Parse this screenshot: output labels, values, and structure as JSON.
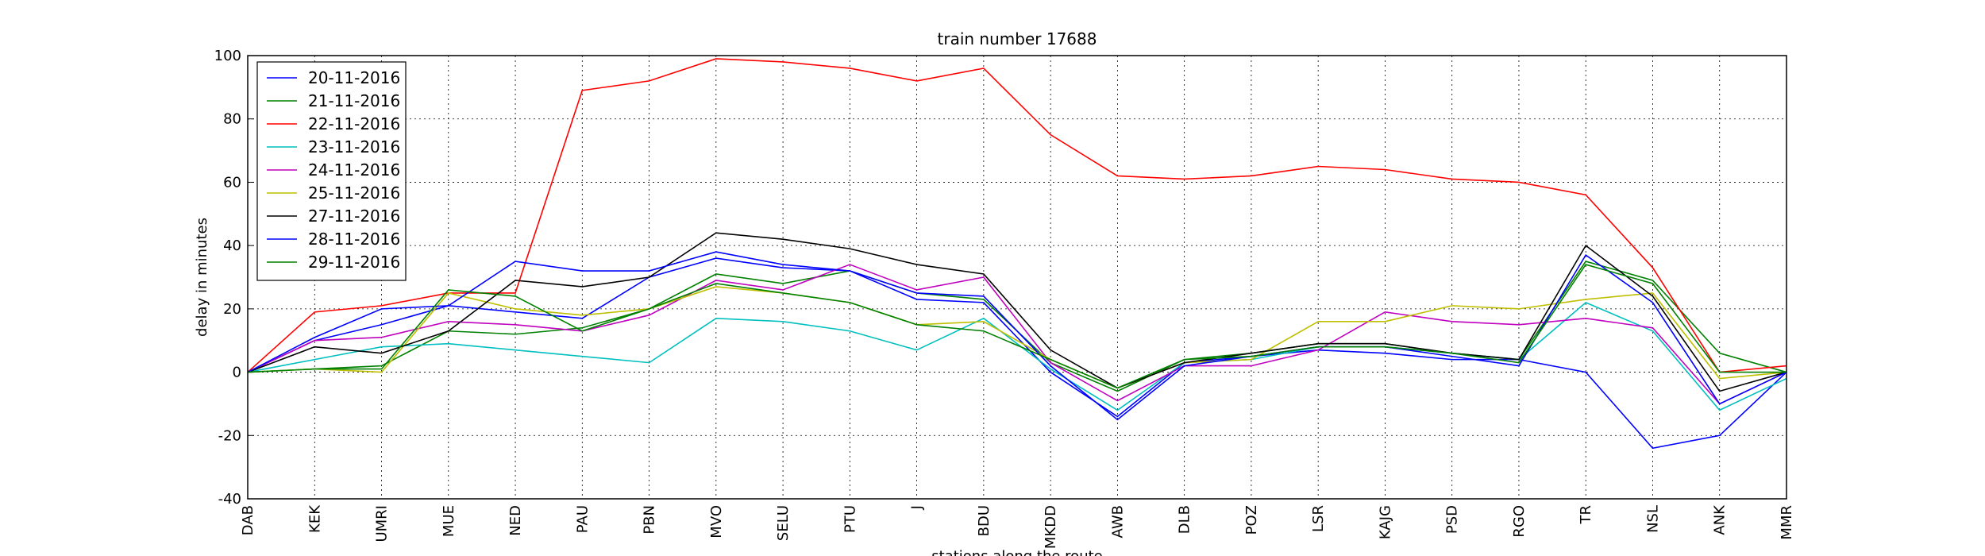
{
  "chart_data": {
    "type": "line",
    "title": "train number 17688",
    "x_label": "stations along the route",
    "y_label": "delay in minutes",
    "categories": [
      "DAB",
      "KEK",
      "UMRI",
      "MUE",
      "NED",
      "PAU",
      "PBN",
      "MVO",
      "SELU",
      "PTU",
      "J",
      "BDU",
      "MKDD",
      "AWB",
      "DLB",
      "POZ",
      "LSR",
      "KAJG",
      "PSD",
      "RGO",
      "TR",
      "NSL",
      "ANK",
      "MMR"
    ],
    "ylim": [
      -40,
      100
    ],
    "yticks": [
      -40,
      -20,
      0,
      20,
      40,
      60,
      80,
      100
    ],
    "grid": true,
    "legend": "upper left",
    "series": [
      {
        "name": "20-11-2016",
        "color": "#0000ff",
        "values": [
          0,
          10,
          15,
          21,
          19,
          17,
          30,
          36,
          33,
          32,
          23,
          22,
          0,
          -14,
          3,
          5,
          7,
          6,
          4,
          4,
          0,
          -24,
          -20,
          0
        ]
      },
      {
        "name": "21-11-2016",
        "color": "#008000",
        "values": [
          0,
          1,
          2,
          13,
          12,
          14,
          20,
          31,
          28,
          32,
          25,
          23,
          3,
          -6,
          4,
          6,
          9,
          9,
          6,
          4,
          35,
          29,
          6,
          0
        ]
      },
      {
        "name": "22-11-2016",
        "color": "#ff0000",
        "values": [
          0,
          19,
          21,
          25,
          25,
          89,
          92,
          99,
          98,
          96,
          92,
          96,
          75,
          62,
          61,
          62,
          65,
          64,
          61,
          60,
          56,
          33,
          0,
          2
        ]
      },
      {
        "name": "23-11-2016",
        "color": "#00bfbf",
        "values": [
          0,
          4,
          8,
          9,
          7,
          5,
          3,
          17,
          16,
          13,
          7,
          17,
          1,
          -12,
          3,
          4,
          8,
          8,
          6,
          4,
          22,
          13,
          -12,
          -2
        ]
      },
      {
        "name": "24-11-2016",
        "color": "#bf00bf",
        "values": [
          0,
          10,
          11,
          16,
          15,
          13,
          18,
          29,
          26,
          34,
          26,
          30,
          3,
          -9,
          2,
          2,
          7,
          19,
          16,
          15,
          17,
          14,
          -10,
          0
        ]
      },
      {
        "name": "25-11-2016",
        "color": "#bfbf00",
        "values": [
          0,
          1,
          0,
          25,
          20,
          18,
          20,
          27,
          25,
          22,
          15,
          16,
          4,
          -5,
          3,
          4,
          16,
          16,
          21,
          20,
          23,
          25,
          -2,
          0
        ]
      },
      {
        "name": "27-11-2016",
        "color": "#000000",
        "values": [
          0,
          8,
          6,
          13,
          29,
          27,
          30,
          44,
          42,
          39,
          34,
          31,
          7,
          -5,
          3,
          6,
          9,
          9,
          6,
          4,
          40,
          24,
          -6,
          0
        ]
      },
      {
        "name": "28-11-2016",
        "color": "#0000ff",
        "values": [
          0,
          11,
          20,
          21,
          35,
          32,
          32,
          38,
          34,
          32,
          25,
          24,
          2,
          -15,
          2,
          5,
          8,
          8,
          5,
          2,
          37,
          22,
          -10,
          0
        ]
      },
      {
        "name": "29-11-2016",
        "color": "#008000",
        "values": [
          0,
          1,
          1,
          26,
          24,
          13,
          20,
          28,
          25,
          22,
          15,
          13,
          4,
          -5,
          4,
          5,
          8,
          8,
          6,
          3,
          34,
          28,
          0,
          0
        ]
      }
    ]
  }
}
